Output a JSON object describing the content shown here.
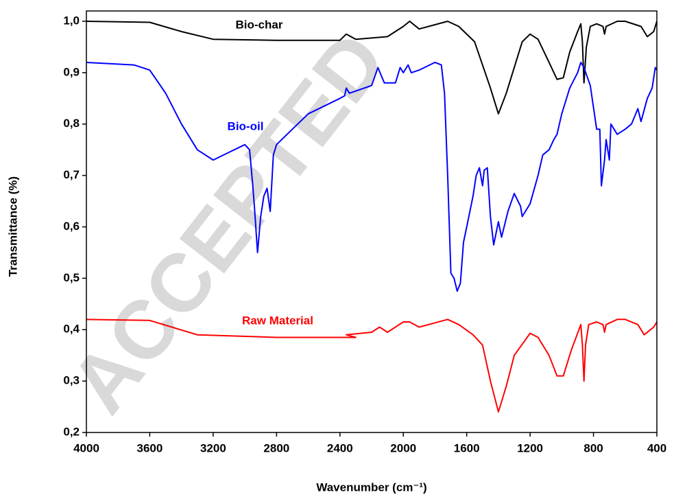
{
  "chart_data": {
    "type": "line",
    "watermark": "ACCEPTED",
    "xlabel": "Wavenumber (cm⁻¹)",
    "ylabel": "Transmittance (%)",
    "xlim": [
      4000,
      400
    ],
    "ylim": [
      0.2,
      1.02
    ],
    "xticks": [
      4000,
      3600,
      3200,
      2800,
      2400,
      2000,
      1600,
      1200,
      800,
      400
    ],
    "yticks": [
      {
        "value": 0.2,
        "label": "0,2"
      },
      {
        "value": 0.3,
        "label": "0,3"
      },
      {
        "value": 0.4,
        "label": "0,4"
      },
      {
        "value": 0.5,
        "label": "0,5"
      },
      {
        "value": 0.6,
        "label": "0,6"
      },
      {
        "value": 0.7,
        "label": "0,7"
      },
      {
        "value": 0.8,
        "label": "0,8"
      },
      {
        "value": 0.9,
        "label": "0,9"
      },
      {
        "value": 1.0,
        "label": "1,0"
      }
    ],
    "series": [
      {
        "name": "Bio-char",
        "color": "#000000",
        "x": [
          4000,
          3600,
          3400,
          3200,
          2800,
          2400,
          2360,
          2300,
          2100,
          2000,
          1960,
          1900,
          1720,
          1650,
          1550,
          1450,
          1400,
          1350,
          1250,
          1200,
          1150,
          1080,
          1030,
          990,
          950,
          900,
          880,
          870,
          860,
          845,
          820,
          780,
          740,
          730,
          720,
          650,
          600,
          500,
          460,
          420,
          400
        ],
        "values": [
          1.0,
          0.998,
          0.98,
          0.965,
          0.963,
          0.963,
          0.975,
          0.965,
          0.97,
          0.99,
          1.0,
          0.985,
          1.0,
          0.99,
          0.96,
          0.87,
          0.82,
          0.86,
          0.96,
          0.975,
          0.965,
          0.92,
          0.887,
          0.89,
          0.94,
          0.98,
          0.995,
          0.96,
          0.88,
          0.95,
          0.99,
          0.995,
          0.99,
          0.975,
          0.99,
          1.0,
          1.0,
          0.99,
          0.97,
          0.98,
          1.0
        ]
      },
      {
        "name": "Bio-oil",
        "color": "#0000ff",
        "x": [
          4000,
          3700,
          3600,
          3500,
          3400,
          3300,
          3200,
          3100,
          3000,
          2970,
          2950,
          2940,
          2920,
          2900,
          2880,
          2860,
          2840,
          2820,
          2800,
          2700,
          2600,
          2400,
          2370,
          2360,
          2340,
          2200,
          2160,
          2120,
          2050,
          2020,
          2000,
          1970,
          1950,
          1900,
          1800,
          1760,
          1740,
          1720,
          1700,
          1680,
          1660,
          1640,
          1620,
          1600,
          1560,
          1540,
          1520,
          1500,
          1490,
          1470,
          1450,
          1430,
          1400,
          1380,
          1340,
          1300,
          1260,
          1250,
          1200,
          1150,
          1120,
          1080,
          1050,
          1030,
          1000,
          950,
          900,
          880,
          860,
          820,
          780,
          760,
          750,
          730,
          720,
          700,
          690,
          650,
          600,
          560,
          520,
          500,
          460,
          430,
          410,
          400
        ],
        "values": [
          0.92,
          0.915,
          0.905,
          0.86,
          0.8,
          0.75,
          0.73,
          0.745,
          0.76,
          0.75,
          0.68,
          0.64,
          0.55,
          0.62,
          0.66,
          0.675,
          0.63,
          0.74,
          0.76,
          0.79,
          0.82,
          0.85,
          0.855,
          0.87,
          0.86,
          0.875,
          0.91,
          0.88,
          0.88,
          0.91,
          0.9,
          0.915,
          0.9,
          0.905,
          0.92,
          0.915,
          0.86,
          0.7,
          0.51,
          0.5,
          0.475,
          0.49,
          0.57,
          0.6,
          0.66,
          0.7,
          0.715,
          0.68,
          0.71,
          0.715,
          0.62,
          0.565,
          0.61,
          0.58,
          0.63,
          0.665,
          0.64,
          0.62,
          0.645,
          0.7,
          0.74,
          0.75,
          0.77,
          0.78,
          0.82,
          0.87,
          0.9,
          0.92,
          0.91,
          0.875,
          0.79,
          0.79,
          0.68,
          0.73,
          0.77,
          0.73,
          0.8,
          0.78,
          0.79,
          0.8,
          0.83,
          0.805,
          0.85,
          0.87,
          0.91,
          0.905
        ]
      },
      {
        "name": "Raw Material",
        "color": "#ff0000",
        "x": [
          4000,
          3600,
          3300,
          2800,
          2300,
          2360,
          2200,
          2150,
          2100,
          2000,
          1960,
          1900,
          1720,
          1650,
          1560,
          1500,
          1450,
          1400,
          1350,
          1300,
          1200,
          1150,
          1080,
          1030,
          990,
          940,
          880,
          870,
          860,
          850,
          830,
          780,
          740,
          730,
          720,
          650,
          600,
          520,
          480,
          420,
          400
        ],
        "values": [
          0.42,
          0.418,
          0.39,
          0.385,
          0.385,
          0.39,
          0.395,
          0.405,
          0.395,
          0.415,
          0.415,
          0.405,
          0.42,
          0.41,
          0.39,
          0.37,
          0.3,
          0.24,
          0.29,
          0.35,
          0.393,
          0.385,
          0.35,
          0.31,
          0.31,
          0.36,
          0.41,
          0.37,
          0.3,
          0.37,
          0.41,
          0.415,
          0.41,
          0.395,
          0.41,
          0.42,
          0.42,
          0.41,
          0.39,
          0.405,
          0.415
        ]
      }
    ]
  }
}
